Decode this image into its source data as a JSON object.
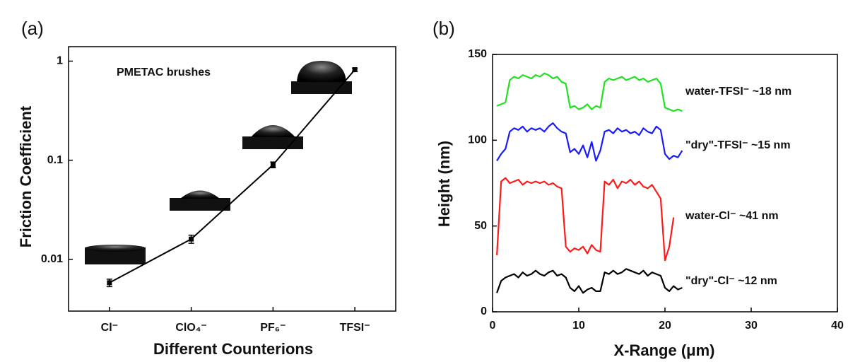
{
  "chart_data": [
    {
      "type": "line",
      "panel_label": "(a)",
      "annotation": "PMETAC brushes",
      "x_label": "Different Counterions",
      "y_label": "Friction Coefficient",
      "categories": [
        "Cl⁻",
        "ClO₄⁻",
        "PF₆⁻",
        "TFSI⁻"
      ],
      "values": [
        0.0058,
        0.016,
        0.09,
        0.82
      ],
      "errors": [
        0.0005,
        0.0015,
        0.006,
        0.03
      ],
      "color": "#000000",
      "log_y": true,
      "ylim": [
        0.003,
        1.4
      ],
      "yticks": [
        0.01,
        0.1,
        1
      ]
    },
    {
      "type": "line",
      "panel_label": "(b)",
      "x_label": "X-Range (μm)",
      "y_label": "Height (nm)",
      "x": [
        0.5,
        1,
        1.5,
        2,
        2.5,
        3,
        3.5,
        4,
        4.5,
        5,
        5.5,
        6,
        6.5,
        7,
        7.5,
        8,
        8.5,
        9,
        9.5,
        10,
        10.5,
        11,
        11.5,
        12,
        12.5,
        13,
        13.5,
        14,
        14.5,
        15,
        15.5,
        16,
        16.5,
        17,
        17.5,
        18,
        18.5,
        19,
        19.5,
        20,
        20.5,
        21,
        21.5,
        22
      ],
      "series": [
        {
          "name": "water-TFSI⁻ ~18 nm",
          "color": "#22e022",
          "values": [
            120,
            121,
            122,
            135,
            137,
            136,
            138,
            137,
            136,
            138,
            137,
            139,
            138,
            136,
            137,
            134,
            133,
            119,
            120,
            118,
            119,
            121,
            118,
            120,
            119,
            134,
            136,
            135,
            136,
            137,
            135,
            136,
            137,
            135,
            136,
            134,
            135,
            136,
            133,
            119,
            118,
            117,
            118,
            117
          ]
        },
        {
          "name": "\"dry\"-TFSI⁻ ~15 nm",
          "color": "#1a1aff",
          "values": [
            88,
            92,
            95,
            105,
            107,
            106,
            108,
            105,
            107,
            106,
            107,
            105,
            108,
            110,
            107,
            105,
            104,
            93,
            95,
            92,
            97,
            90,
            99,
            88,
            94,
            105,
            106,
            104,
            107,
            105,
            106,
            104,
            105,
            103,
            107,
            105,
            104,
            108,
            106,
            92,
            89,
            91,
            90,
            94
          ]
        },
        {
          "name": "water-Cl⁻ ~41 nm",
          "color": "#ff1a1a",
          "values": [
            33,
            76,
            78,
            75,
            76,
            77,
            74,
            76,
            75,
            76,
            75,
            76,
            74,
            75,
            73,
            72,
            38,
            35,
            37,
            36,
            38,
            34,
            39,
            36,
            35,
            76,
            74,
            77,
            72,
            76,
            75,
            77,
            74,
            76,
            73,
            72,
            74,
            70,
            66,
            30,
            38,
            55,
            null,
            null
          ]
        },
        {
          "name": "\"dry\"-Cl⁻ ~12 nm",
          "color": "#000000",
          "values": [
            11,
            18,
            20,
            21,
            22,
            20,
            23,
            21,
            22,
            24,
            22,
            21,
            23,
            24,
            21,
            22,
            20,
            14,
            12,
            15,
            11,
            13,
            14,
            12,
            12,
            23,
            22,
            24,
            22,
            23,
            25,
            24,
            23,
            22,
            24,
            21,
            23,
            22,
            21,
            14,
            12,
            15,
            13,
            14
          ]
        }
      ],
      "xlim": [
        0,
        40
      ],
      "xticks": [
        0,
        10,
        20,
        30,
        40
      ],
      "ylim": [
        0,
        150
      ],
      "yticks": [
        0,
        50,
        100,
        150
      ]
    }
  ]
}
